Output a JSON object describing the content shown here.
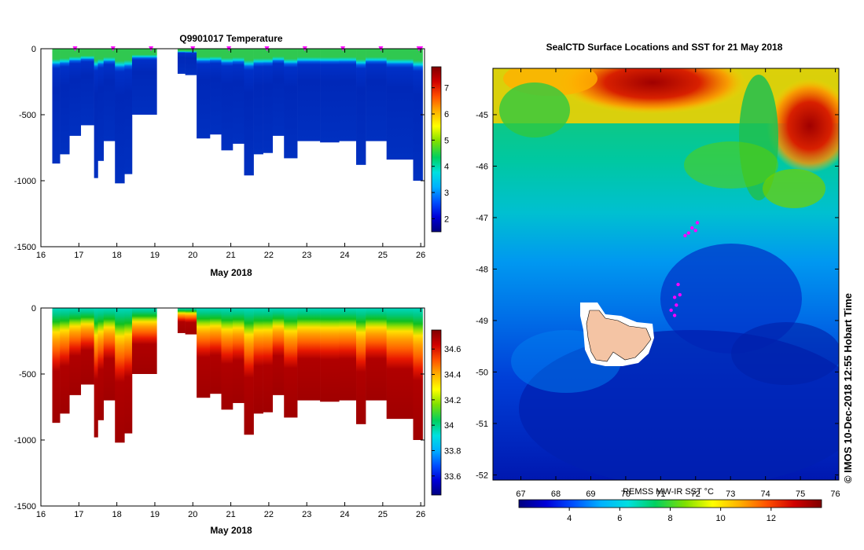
{
  "chart_data": [
    {
      "type": "heatmap",
      "title": "Q9901017  Temperature",
      "variable": "temperature",
      "xlabel": "May 2018",
      "xlim": [
        16,
        26.1
      ],
      "xticks": [
        "16",
        "17",
        "18",
        "19",
        "20",
        "21",
        "22",
        "23",
        "24",
        "25",
        "26"
      ],
      "ylim": [
        -1500,
        0
      ],
      "yticks": [
        "0",
        "-500",
        "-1000",
        "-1500"
      ],
      "colorbar": {
        "min": 1.5,
        "max": 7.8,
        "ticks": [
          "2",
          "3",
          "4",
          "5",
          "6",
          "7"
        ]
      },
      "profiles": [
        {
          "t0": 16.3,
          "t1": 16.5,
          "depth": 870
        },
        {
          "t0": 16.5,
          "t1": 16.75,
          "depth": 800
        },
        {
          "t0": 16.75,
          "t1": 17.05,
          "depth": 660
        },
        {
          "t0": 17.05,
          "t1": 17.4,
          "depth": 580
        },
        {
          "t0": 17.4,
          "t1": 17.5,
          "depth": 980
        },
        {
          "t0": 17.5,
          "t1": 17.65,
          "depth": 850
        },
        {
          "t0": 17.65,
          "t1": 17.95,
          "depth": 700
        },
        {
          "t0": 17.95,
          "t1": 18.2,
          "depth": 1020
        },
        {
          "t0": 18.2,
          "t1": 18.4,
          "depth": 950
        },
        {
          "t0": 18.4,
          "t1": 19.05,
          "depth": 500
        },
        {
          "t0": 19.6,
          "t1": 19.8,
          "depth": 190
        },
        {
          "t0": 19.8,
          "t1": 20.1,
          "depth": 200
        },
        {
          "t0": 20.1,
          "t1": 20.45,
          "depth": 680
        },
        {
          "t0": 20.45,
          "t1": 20.75,
          "depth": 650
        },
        {
          "t0": 20.75,
          "t1": 21.05,
          "depth": 770
        },
        {
          "t0": 21.05,
          "t1": 21.35,
          "depth": 720
        },
        {
          "t0": 21.35,
          "t1": 21.6,
          "depth": 960
        },
        {
          "t0": 21.6,
          "t1": 21.85,
          "depth": 800
        },
        {
          "t0": 21.85,
          "t1": 22.1,
          "depth": 790
        },
        {
          "t0": 22.1,
          "t1": 22.4,
          "depth": 660
        },
        {
          "t0": 22.4,
          "t1": 22.75,
          "depth": 830
        },
        {
          "t0": 22.75,
          "t1": 23.35,
          "depth": 700
        },
        {
          "t0": 23.35,
          "t1": 23.85,
          "depth": 710
        },
        {
          "t0": 23.85,
          "t1": 24.3,
          "depth": 700
        },
        {
          "t0": 24.3,
          "t1": 24.55,
          "depth": 880
        },
        {
          "t0": 24.55,
          "t1": 25.1,
          "depth": 700
        },
        {
          "t0": 25.1,
          "t1": 25.8,
          "depth": 840
        },
        {
          "t0": 25.8,
          "t1": 26.05,
          "depth": 1000
        }
      ],
      "surface_markers": [
        16.9,
        17.9,
        18.9,
        20.0,
        20.95,
        21.95,
        22.95,
        23.95,
        24.95,
        25.95,
        26.0
      ]
    },
    {
      "type": "heatmap",
      "title": "",
      "variable": "salinity",
      "xlabel": "May 2018",
      "xlim": [
        16,
        26.1
      ],
      "xticks": [
        "16",
        "17",
        "18",
        "19",
        "20",
        "21",
        "22",
        "23",
        "24",
        "25",
        "26"
      ],
      "ylim": [
        -1500,
        0
      ],
      "yticks": [
        "0",
        "-500",
        "-1000",
        "-1500"
      ],
      "colorbar": {
        "min": 33.45,
        "max": 34.75,
        "ticks": [
          "33.6",
          "33.8",
          "34",
          "34.2",
          "34.4",
          "34.6"
        ]
      }
    },
    {
      "type": "heatmap",
      "title": "SealCTD Surface Locations and SST for 21 May 2018",
      "xlim": [
        66.2,
        76.1
      ],
      "xticks": [
        "67",
        "68",
        "69",
        "70",
        "71",
        "72",
        "73",
        "74",
        "75",
        "76"
      ],
      "ylim": [
        -52.1,
        -44.1
      ],
      "yticks": [
        "-45",
        "-46",
        "-47",
        "-48",
        "-49",
        "-50",
        "-51",
        "-52"
      ],
      "colorbar": {
        "label": "REMSS MW-IR SST °C",
        "min": 2.0,
        "max": 14.0,
        "ticks": [
          "4",
          "6",
          "8",
          "10",
          "12"
        ]
      },
      "seal_positions": [
        {
          "lon": 71.9,
          "lat": -47.2
        },
        {
          "lon": 72.0,
          "lat": -47.25
        },
        {
          "lon": 71.8,
          "lat": -47.3
        },
        {
          "lon": 72.05,
          "lat": -47.1
        },
        {
          "lon": 71.7,
          "lat": -47.35
        },
        {
          "lon": 71.55,
          "lat": -48.5
        },
        {
          "lon": 71.4,
          "lat": -48.55
        },
        {
          "lon": 71.45,
          "lat": -48.7
        },
        {
          "lon": 71.3,
          "lat": -48.8
        },
        {
          "lon": 71.5,
          "lat": -48.3
        },
        {
          "lon": 71.4,
          "lat": -48.9
        }
      ]
    }
  ],
  "credit": "© IMOS 10-Dec-2018 12:55 Hobart Time",
  "colors": {
    "scale": [
      "#000080",
      "#0000d8",
      "#0050ff",
      "#00b0ff",
      "#00e0e0",
      "#00d060",
      "#80e000",
      "#ffff00",
      "#ffb000",
      "#ff5000",
      "#d00000",
      "#800000"
    ],
    "seal_marker": "#ff00ff",
    "land": "#f4c4a4"
  }
}
